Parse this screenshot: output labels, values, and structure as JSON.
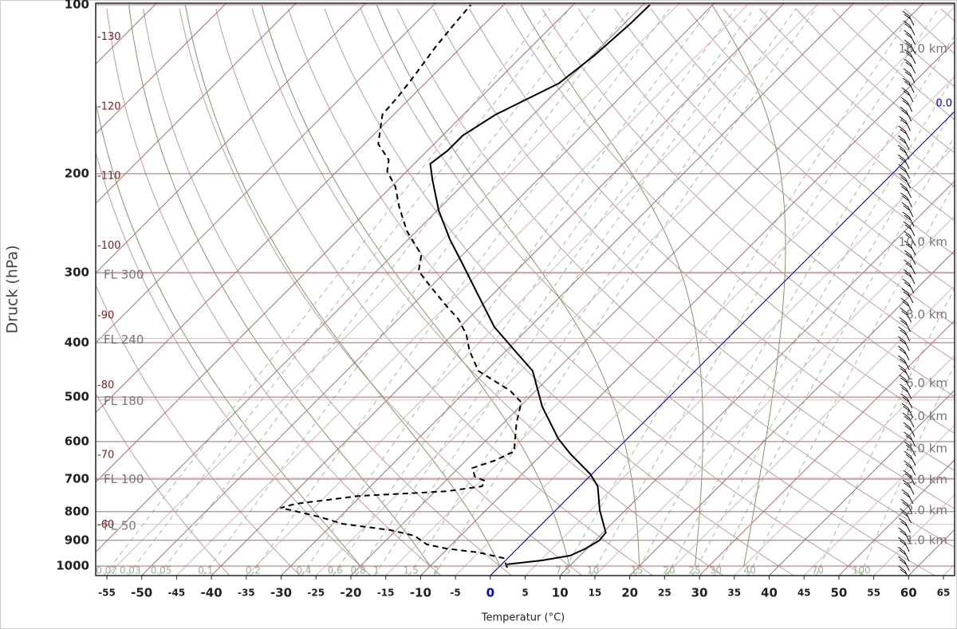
{
  "chart_data": {
    "type": "skewt",
    "xlabel": "Temperatur (°C)",
    "ylabel": "Druck (hPa)",
    "xlim": [
      -56.6,
      66.6
    ],
    "ylim": [
      1040,
      100
    ],
    "xticks": [
      -55,
      -50,
      -45,
      -40,
      -35,
      -30,
      -25,
      -20,
      -15,
      -10,
      -5,
      0,
      5,
      10,
      15,
      20,
      25,
      30,
      35,
      40,
      45,
      50,
      55,
      60,
      65
    ],
    "yticks": [
      100,
      200,
      300,
      400,
      500,
      600,
      700,
      800,
      900,
      1000
    ],
    "log_scale": true,
    "grid": true,
    "isotherm_labels": [
      -130,
      -120,
      -110,
      -100,
      -90,
      -80,
      -70,
      -60
    ],
    "mixing_ratios": [
      0.02,
      0.03,
      0.05,
      0.1,
      0.2,
      0.4,
      0.6,
      0.8,
      1,
      1.5,
      2,
      7.5,
      10,
      15,
      20,
      25,
      30,
      40,
      70,
      100
    ],
    "freezing_line": {
      "temperature": 0,
      "label": "0.0",
      "color": "#0000ee"
    },
    "flight_levels": [
      {
        "label": "FL 300",
        "pressure": 301
      },
      {
        "label": "FL 240",
        "pressure": 393
      },
      {
        "label": "FL 180",
        "pressure": 506
      },
      {
        "label": "FL 100",
        "pressure": 697
      },
      {
        "label": "FL 50",
        "pressure": 843
      }
    ],
    "heights": [
      {
        "label": "16.0 km",
        "pressure": 120
      },
      {
        "label": "10.0 km",
        "pressure": 265
      },
      {
        "label": "8.0 km",
        "pressure": 357
      },
      {
        "label": "6.0 km",
        "pressure": 473
      },
      {
        "label": "5.0 km",
        "pressure": 542
      },
      {
        "label": "4.0 km",
        "pressure": 618
      },
      {
        "label": "3.0 km",
        "pressure": 702
      },
      {
        "label": "2.0 km",
        "pressure": 797
      },
      {
        "label": "1.0 km",
        "pressure": 901
      }
    ],
    "series": [
      {
        "color": "#000000",
        "dash": false,
        "pressure": [
          993,
          977,
          958,
          931,
          901,
          872,
          795,
          721,
          686,
          632,
          593,
          520,
          449,
          413,
          375,
          324,
          289,
          262,
          233,
          205,
          192,
          182,
          171,
          157,
          138,
          123,
          108,
          100
        ],
        "temperature": [
          0.8,
          5.3,
          8.6,
          9.8,
          10.6,
          10.4,
          6.3,
          2.6,
          -0.2,
          -5.9,
          -9.9,
          -16.8,
          -23.3,
          -28.8,
          -35.1,
          -42.8,
          -48.8,
          -54,
          -59.7,
          -65.1,
          -67.7,
          -67.1,
          -67.1,
          -65.4,
          -60.8,
          -59.7,
          -59.1,
          -59.0
        ]
      },
      {
        "color": "#000000",
        "dash": true,
        "pressure": [
          1007,
          968,
          946,
          931,
          915,
          883,
          863,
          841,
          817,
          795,
          788,
          775,
          750,
          736,
          721,
          705,
          693,
          669,
          649,
          625,
          555,
          511,
          487,
          449,
          413,
          387,
          363,
          345,
          318,
          298,
          279,
          253,
          229,
          211,
          198,
          189,
          177,
          157,
          145,
          134,
          119,
          108,
          100
        ],
        "temperature": [
          1.3,
          -0.6,
          -5.0,
          -10.2,
          -13.6,
          -16.6,
          -20.8,
          -28.6,
          -33.0,
          -38.0,
          -39.8,
          -38.3,
          -30.3,
          -18.4,
          -14.0,
          -14.4,
          -16.4,
          -18.0,
          -15.9,
          -14.4,
          -18.2,
          -20.4,
          -23.7,
          -31.1,
          -35.3,
          -38.0,
          -41.4,
          -44.8,
          -50.0,
          -54.0,
          -55.9,
          -61.4,
          -66.0,
          -69.4,
          -72.8,
          -74.2,
          -78.0,
          -81.6,
          -82.0,
          -82.6,
          -83.7,
          -84.3,
          -84.7
        ]
      }
    ]
  }
}
